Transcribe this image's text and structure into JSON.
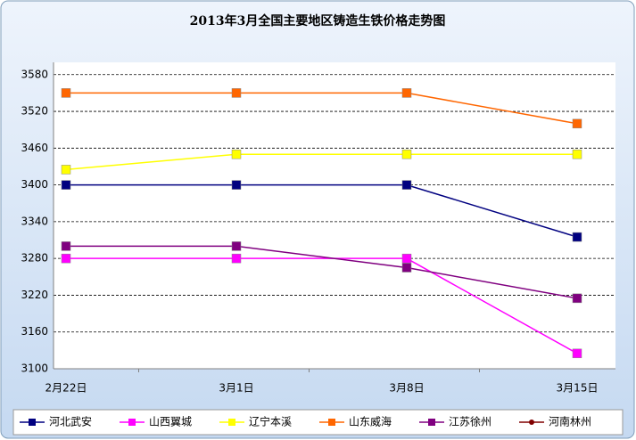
{
  "chart_data": {
    "type": "line",
    "title": "2013年3月全国主要地区铸造生铁价格走势图",
    "categories": [
      "2月22日",
      "3月1日",
      "3月8日",
      "3月15日"
    ],
    "series": [
      {
        "name": "河北武安",
        "color": "#000080",
        "values": [
          3400,
          3400,
          3400,
          3315
        ]
      },
      {
        "name": "山西翼城",
        "color": "#ff00ff",
        "values": [
          3280,
          3280,
          3280,
          3125
        ]
      },
      {
        "name": "辽宁本溪",
        "color": "#ffff00",
        "values": [
          3425,
          3450,
          3450,
          3450
        ]
      },
      {
        "name": "山东威海",
        "color": "#ff6600",
        "values": [
          3550,
          3550,
          3550,
          3500
        ]
      },
      {
        "name": "江苏徐州",
        "color": "#800080",
        "values": [
          3300,
          3300,
          3265,
          3215
        ]
      },
      {
        "name": "河南林州",
        "color": "#800000",
        "values": [
          null,
          null,
          null,
          null
        ]
      }
    ],
    "ylim": [
      3100,
      3600
    ],
    "yticks": [
      3100,
      3160,
      3220,
      3280,
      3340,
      3400,
      3460,
      3520,
      3580
    ],
    "grid": true,
    "legend": "bottom"
  }
}
